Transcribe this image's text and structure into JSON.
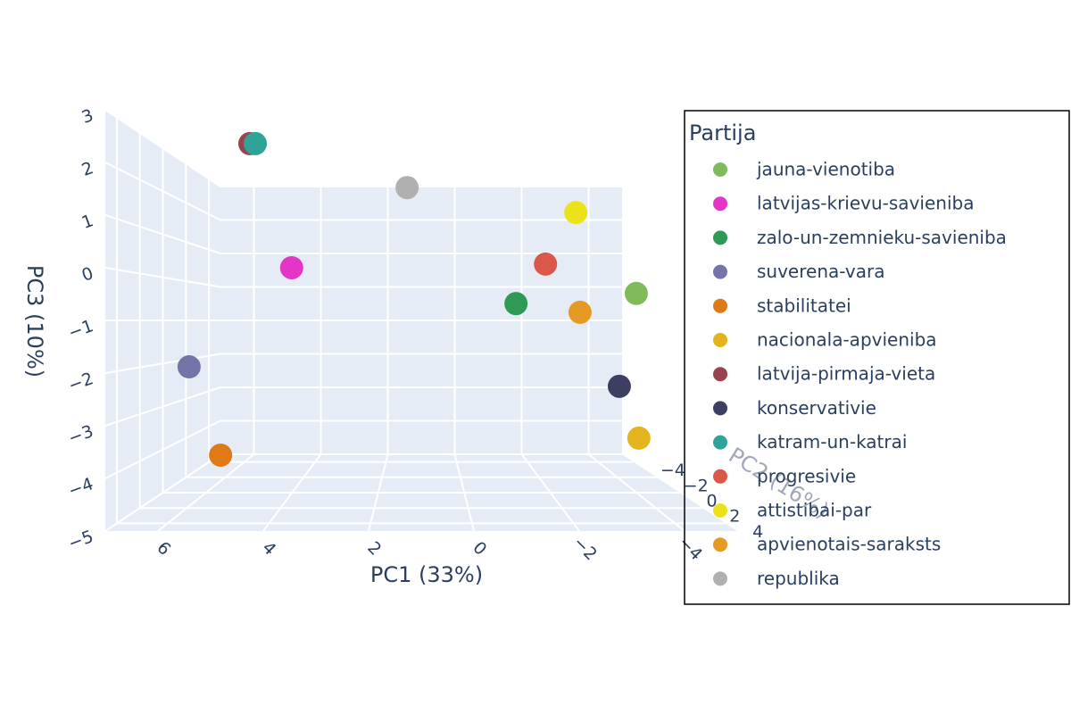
{
  "chart_data": {
    "type": "scatter3d",
    "legend_title": "Partija",
    "xaxis_title": "PC1 (33%)",
    "yaxis_title": "PC2 (16%)",
    "zaxis_title": "PC3 (10%)",
    "xlim": [
      -5,
      7
    ],
    "ylim": [
      -5,
      5
    ],
    "zlim": [
      -5,
      3
    ],
    "xticks": [
      6,
      4,
      2,
      0,
      {
        "value": -2,
        "label": "−2"
      },
      {
        "value": -4,
        "label": "−4"
      }
    ],
    "yticks": [
      {
        "value": -4,
        "label": "−4"
      },
      {
        "value": -2,
        "label": "−2"
      },
      0,
      2,
      4
    ],
    "zticks": [
      3,
      2,
      1,
      0,
      {
        "value": -1,
        "label": "−1"
      },
      {
        "value": -2,
        "label": "−2"
      },
      {
        "value": -3,
        "label": "−3"
      },
      {
        "value": -4,
        "label": "−4"
      },
      {
        "value": -5,
        "label": "−5"
      }
    ],
    "grid": true,
    "series": [
      {
        "name": "jauna-vienotiba",
        "color": "#80bb5b",
        "x": [
          -3.78
        ],
        "y": [
          1
        ],
        "z": [
          -0.4
        ]
      },
      {
        "name": "latvijas-krievu-savieniba",
        "color": "#e535c8",
        "x": [
          4.15
        ],
        "y": [
          -1
        ],
        "z": [
          0.28
        ]
      },
      {
        "name": "zalo-un-zemnieku-savieniba",
        "color": "#2e9a55",
        "x": [
          -1.2
        ],
        "y": [
          0
        ],
        "z": [
          -0.61
        ]
      },
      {
        "name": "suverena-vara",
        "color": "#7474a8",
        "x": [
          5.95
        ],
        "y": [
          2
        ],
        "z": [
          -1.99
        ]
      },
      {
        "name": "stabilitatei",
        "color": "#e07a16",
        "x": [
          5.11
        ],
        "y": [
          3
        ],
        "z": [
          -3.76
        ]
      },
      {
        "name": "nacionala-apvieniba",
        "color": "#e4b41f",
        "x": [
          -3.64
        ],
        "y": [
          2
        ],
        "z": [
          -3.51
        ]
      },
      {
        "name": "latvija-pirmaja-vieta",
        "color": "#9a4350",
        "x": [
          4.81
        ],
        "y": [
          1
        ],
        "z": [
          2.93
        ]
      },
      {
        "name": "konservativie",
        "color": "#3c3f62",
        "x": [
          -3.6
        ],
        "y": [
          0
        ],
        "z": [
          -2.53
        ]
      },
      {
        "name": "katram-un-katrai",
        "color": "#2fa398",
        "x": [
          4.69
        ],
        "y": [
          1
        ],
        "z": [
          2.93
        ]
      },
      {
        "name": "progresivie",
        "color": "#d9584a",
        "x": [
          -2.02
        ],
        "y": [
          -1
        ],
        "z": [
          0.37
        ]
      },
      {
        "name": "attistibai-par",
        "color": "#ece21a",
        "x": [
          -2.94
        ],
        "y": [
          -2
        ],
        "z": [
          1.75
        ]
      },
      {
        "name": "apvienotais-saraksts",
        "color": "#e69a23",
        "x": [
          -2.53
        ],
        "y": [
          1
        ],
        "z": [
          -0.82
        ]
      },
      {
        "name": "republika",
        "color": "#b0b0b0",
        "x": [
          1.38
        ],
        "y": [
          -3
        ],
        "z": [
          2.56
        ]
      }
    ]
  }
}
